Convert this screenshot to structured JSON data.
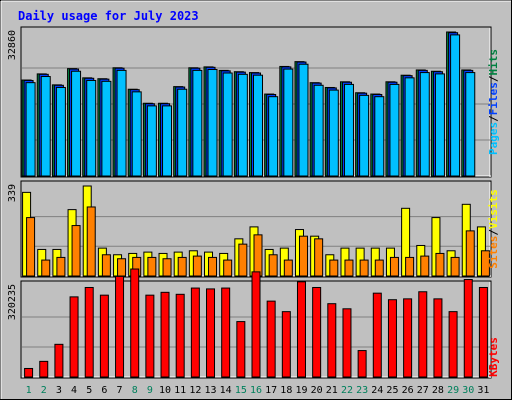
{
  "title": "Daily usage for July 2023",
  "colors": {
    "background": "#c0c0c0",
    "title": "#0000ff",
    "hits": "#008040",
    "files": "#0040ff",
    "pages": "#00c0ff",
    "sites": "#ff8000",
    "visits": "#ffff00",
    "kbytes": "#ff0000",
    "weekend_label": "#00805c",
    "weekday_label": "#000000"
  },
  "legend": {
    "hits": "Hits",
    "files": "Files",
    "pages": "Pages",
    "sites": "Sites",
    "visits": "Visits",
    "kbytes": "KBytes",
    "slash": "/"
  },
  "chart_data": {
    "type": "bar",
    "title": "Daily usage for July 2023",
    "categories": [
      "1",
      "2",
      "3",
      "4",
      "5",
      "6",
      "7",
      "8",
      "9",
      "10",
      "11",
      "12",
      "13",
      "14",
      "15",
      "16",
      "17",
      "18",
      "19",
      "20",
      "21",
      "22",
      "23",
      "24",
      "25",
      "26",
      "27",
      "28",
      "29",
      "30",
      "31"
    ],
    "weekend_days": [
      "1",
      "2",
      "8",
      "9",
      "15",
      "16",
      "22",
      "23",
      "29",
      "30"
    ],
    "panels": [
      {
        "name": "hits-files-pages",
        "axis_label": "32860",
        "ymax": 32860,
        "series": [
          {
            "name": "Hits",
            "color": "#008040",
            "values": [
              21900,
              23300,
              20800,
              24500,
              22400,
              22200,
              24700,
              19800,
              16600,
              16600,
              20400,
              24700,
              24900,
              24100,
              23800,
              23600,
              18700,
              25000,
              26100,
              21300,
              20200,
              21500,
              19000,
              18700,
              21500,
              23000,
              24200,
              23900,
              32860,
              24200,
              0
            ]
          },
          {
            "name": "Files",
            "color": "#0040ff",
            "values": [
              21800,
              23200,
              20700,
              24400,
              22300,
              22100,
              24600,
              19700,
              16500,
              16500,
              20300,
              24600,
              24800,
              24000,
              23700,
              23500,
              18600,
              24900,
              26000,
              21200,
              20100,
              21400,
              18900,
              18600,
              21400,
              22900,
              24100,
              23800,
              32700,
              24100,
              0
            ]
          },
          {
            "name": "Pages",
            "color": "#00c0ff",
            "values": [
              21300,
              22700,
              20200,
              23900,
              21800,
              21600,
              24100,
              19200,
              16000,
              16000,
              19800,
              24100,
              24300,
              23500,
              23200,
              23000,
              18100,
              24400,
              25500,
              20700,
              19600,
              20900,
              18400,
              18100,
              20900,
              22400,
              23600,
              23300,
              32200,
              23600,
              0
            ]
          }
        ]
      },
      {
        "name": "sites-visits",
        "axis_label": "339",
        "ymax": 339,
        "series": [
          {
            "name": "Visits",
            "color": "#ffff00",
            "values": [
              315,
              100,
              100,
              250,
              339,
              105,
              80,
              85,
              90,
              85,
              90,
              95,
              90,
              85,
              140,
              185,
              100,
              105,
              175,
              150,
              80,
              105,
              105,
              105,
              105,
              255,
              115,
              220,
              95,
              270,
              185
            ]
          },
          {
            "name": "Sites",
            "color": "#ff8000",
            "values": [
              220,
              60,
              70,
              190,
              260,
              80,
              65,
              70,
              70,
              65,
              70,
              75,
              70,
              60,
              120,
              155,
              80,
              60,
              150,
              140,
              60,
              60,
              60,
              60,
              70,
              70,
              75,
              85,
              70,
              170,
              95
            ]
          }
        ]
      },
      {
        "name": "kbytes",
        "axis_label": "320235",
        "ymax": 320235,
        "series": [
          {
            "name": "KBytes",
            "color": "#ff0000",
            "values": [
              30000,
              55000,
              115000,
              282000,
              315000,
              288000,
              354000,
              380000,
              288000,
              298000,
              291000,
              313000,
              310000,
              313000,
              195000,
              370000,
              267000,
              230000,
              335000,
              315000,
              258000,
              240000,
              93000,
              295000,
              272000,
              275000,
              300000,
              275000,
              230000,
              343000,
              315000
            ]
          }
        ]
      }
    ]
  }
}
